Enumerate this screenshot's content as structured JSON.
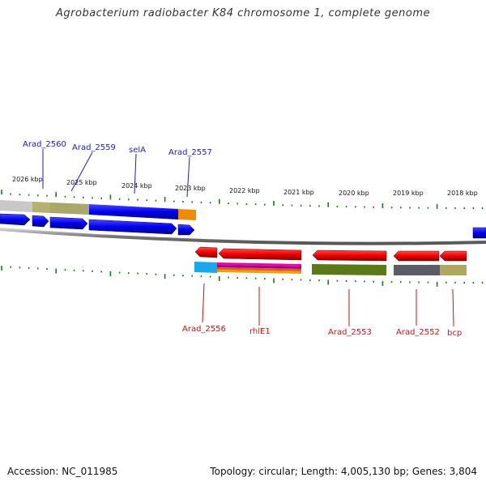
{
  "title": "Agrobacterium radiobacter K84 chromosome 1, complete genome",
  "footer": {
    "accession": "Accession: NC_011985",
    "summary": "Topology: circular; Length: 4,005,130 bp; Genes: 3,804"
  },
  "kbp_ticks": [
    "2026 kbp",
    "2025 kbp",
    "2024 kbp",
    "2023 kbp",
    "2022 kbp",
    "2021 kbp",
    "2020 kbp",
    "2019 kbp",
    "2018 kbp"
  ],
  "forward_labels": [
    "Arad_2560",
    "Arad_2559",
    "selA",
    "Arad_2557"
  ],
  "reverse_labels": [
    "Arad_2556",
    "rhlE1",
    "Arad_2553",
    "Arad_2552",
    "bcp"
  ],
  "colors": {
    "forward_label": "#1a1acc",
    "reverse_label": "#cc1111",
    "gene_blue": "#0000ee",
    "gene_red": "#ee0000",
    "tick_green": "#1a7a1a",
    "backbone": "#888888"
  }
}
